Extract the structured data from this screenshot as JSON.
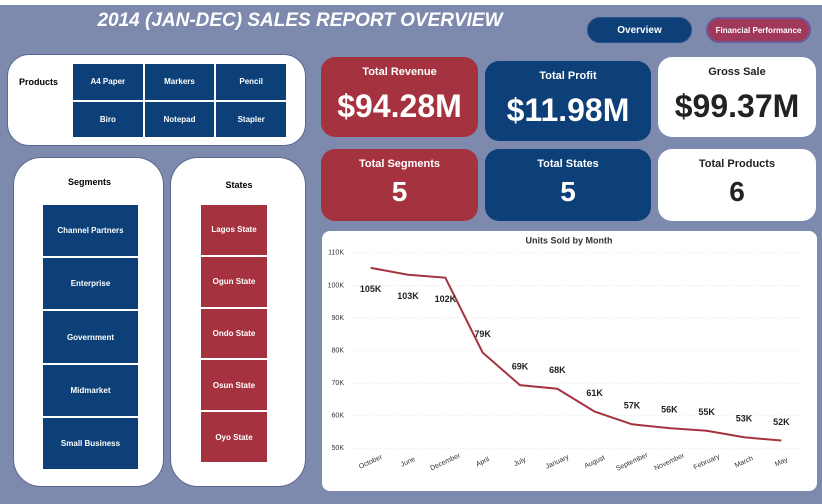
{
  "header": {
    "title": "2014 (JAN-DEC) SALES REPORT OVERVIEW"
  },
  "nav": [
    "Overview",
    "Financial Performance"
  ],
  "products": {
    "label": "Products",
    "items": [
      "A4 Paper",
      "Markers",
      "Pencil",
      "Biro",
      "Notepad",
      "Stapler"
    ]
  },
  "cards": [
    {
      "title": "Total Revenue",
      "value": "$94.28M"
    },
    {
      "title": "Total Profit",
      "value": "$11.98M"
    },
    {
      "title": "Gross Sale",
      "value": "$99.37M"
    },
    {
      "title": "Total Segments",
      "value": 5
    },
    {
      "title": "Total States",
      "value": 5
    },
    {
      "title": "Total Products",
      "value": 6
    }
  ],
  "segments": {
    "title": "Segments",
    "items": [
      "Channel Partners",
      "Enterprise",
      "Government",
      "Midmarket",
      "Small Business"
    ]
  },
  "states": {
    "title": "States",
    "items": [
      "Lagos State",
      "Ogun State",
      "Ondo State",
      "Osun State",
      "Oyo State"
    ]
  },
  "chart_data": {
    "type": "line",
    "title": "Units Sold by Month",
    "categories": [
      "October",
      "June",
      "December",
      "April",
      "July",
      "January",
      "August",
      "September",
      "November",
      "February",
      "March",
      "May"
    ],
    "values": [
      105400,
      103300,
      102400,
      79400,
      69400,
      68300,
      61300,
      57400,
      56200,
      55400,
      53400,
      52400
    ],
    "value_labels": [
      "105K",
      "103K",
      "102K",
      "79K",
      "69K",
      "68K",
      "61K",
      "57K",
      "56K",
      "55K",
      "53K",
      "52K"
    ],
    "color": "#a5333f",
    "ylim": [
      49500,
      111500
    ],
    "yticks": [
      {
        "value": 50000,
        "label": "50K"
      },
      {
        "value": 60000,
        "label": "60K"
      },
      {
        "value": 70000,
        "label": "70K"
      },
      {
        "value": 80000,
        "label": "80K"
      },
      {
        "value": 90000,
        "label": "90K"
      },
      {
        "value": 100000,
        "label": "100K"
      },
      {
        "value": 110000,
        "label": "110K"
      }
    ],
    "grid": true
  }
}
